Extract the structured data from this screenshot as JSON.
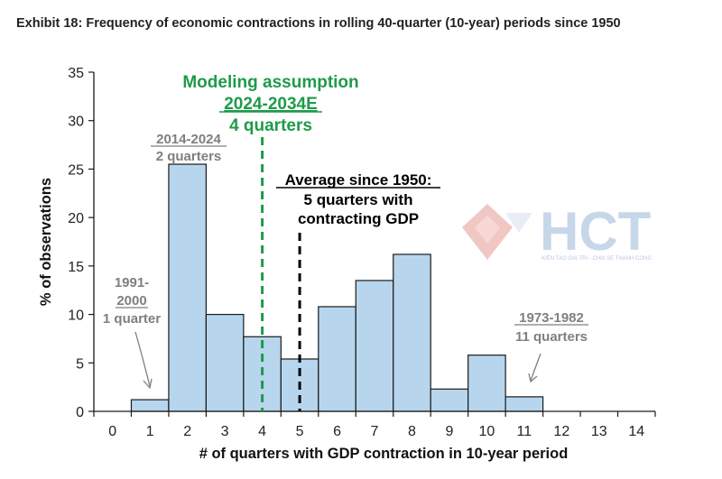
{
  "title": "Exhibit 18: Frequency of economic contractions in rolling 40-quarter (10-year) periods since 1950",
  "watermark": {
    "text": "HCT",
    "tagline": "KIẾN TẠO GIÁ TRỊ - CHIA SẺ THÀNH CÔNG",
    "colors": {
      "red": "#e8a7a1",
      "blue": "#a9c1df"
    }
  },
  "colors": {
    "bar_fill": "#b7d6ee",
    "bar_stroke": "#1a1a1a",
    "modeling": "#1f9a4a",
    "average": "#000000",
    "annotation_gray": "#7f7f7f"
  },
  "chart_data": {
    "type": "bar",
    "title": "Exhibit 18: Frequency of economic contractions in rolling 40-quarter (10-year) periods since 1950",
    "xlabel": "# of quarters with GDP contraction in 10-year period",
    "ylabel": "% of observations",
    "categories": [
      "0",
      "1",
      "2",
      "3",
      "4",
      "5",
      "6",
      "7",
      "8",
      "9",
      "10",
      "11",
      "12",
      "13",
      "14"
    ],
    "values": [
      0,
      1.2,
      25.5,
      10.0,
      7.7,
      5.4,
      10.8,
      13.5,
      16.2,
      2.3,
      5.8,
      1.5,
      0,
      0,
      0
    ],
    "ylim": [
      0,
      35
    ],
    "yticks": [
      0,
      5,
      10,
      15,
      20,
      25,
      30,
      35
    ],
    "grid": false,
    "legend": "none",
    "reference_lines": [
      {
        "x": 4,
        "label": "Modeling assumption 2024-2034E 4 quarters",
        "color": "#1f9a4a",
        "style": "dashed"
      },
      {
        "x": 5,
        "label": "Average since 1950: 5 quarters with contracting GDP",
        "color": "#000000",
        "style": "dashed"
      }
    ],
    "annotations": {
      "modeling": [
        "Modeling assumption",
        "2024-2034E",
        "4 quarters"
      ],
      "average": [
        "Average since 1950:",
        "5 quarters with",
        "contracting GDP"
      ],
      "p2014": [
        "2014-2024",
        "2 quarters"
      ],
      "p1991": [
        "1991-",
        "2000",
        "1 quarter"
      ],
      "p1973": [
        "1973-1982",
        "11 quarters"
      ]
    }
  }
}
